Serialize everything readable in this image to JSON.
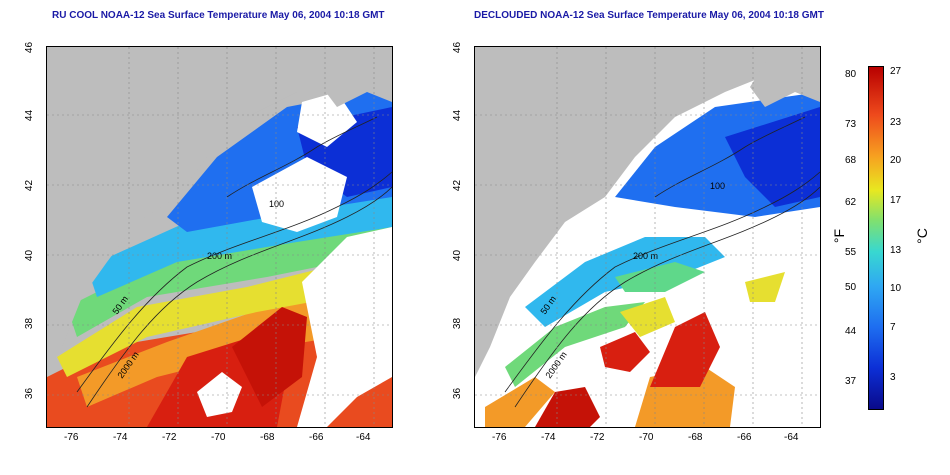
{
  "panels": [
    {
      "title": "RU COOL NOAA-12 Sea Surface Temperature May 06, 2004 10:18 GMT"
    },
    {
      "title": "DECLOUDED NOAA-12 Sea Surface Temperature May 06, 2004 10:18 GMT"
    }
  ],
  "axes": {
    "lat_ticks": [
      "46",
      "44",
      "42",
      "40",
      "38",
      "36"
    ],
    "lon_ticks": [
      "-76",
      "-74",
      "-72",
      "-70",
      "-68",
      "-66",
      "-64"
    ]
  },
  "isobaths": [
    "100",
    "200 m",
    "50 m",
    "2000 m"
  ],
  "colorbar": {
    "fahrenheit_label": "°F",
    "celsius_label": "°C",
    "fahrenheit_ticks": [
      "80",
      "73",
      "68",
      "62",
      "55",
      "50",
      "44",
      "37"
    ],
    "celsius_ticks": [
      "27",
      "23",
      "20",
      "17",
      "13",
      "10",
      "7",
      "3"
    ]
  },
  "colors": {
    "land": "#bdbdbd",
    "cloud": "#ffffff",
    "title": "#1a1aa6"
  }
}
